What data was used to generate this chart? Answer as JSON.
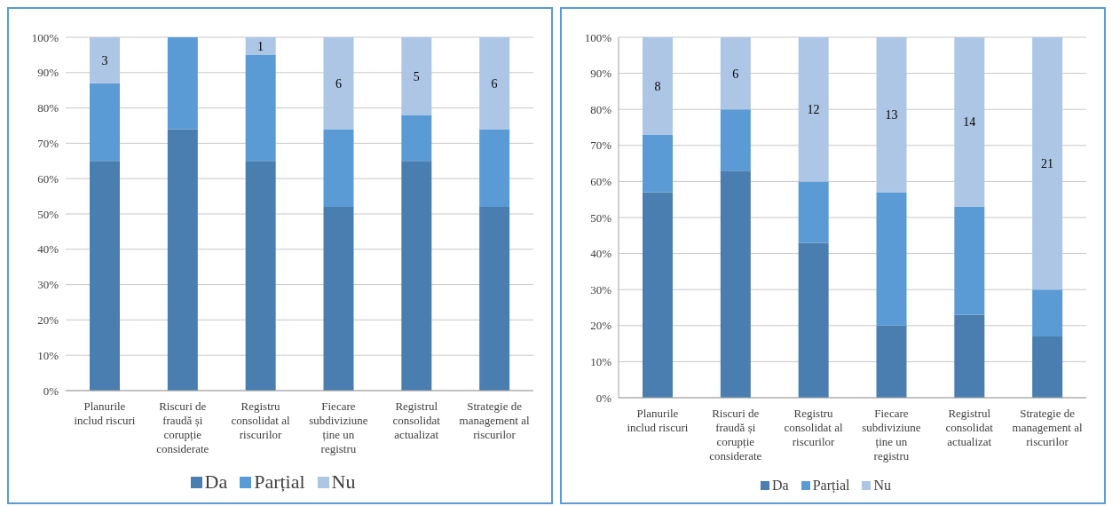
{
  "chart_data": [
    {
      "type": "bar",
      "stacked": true,
      "categories": [
        "Planurile includ riscuri",
        "Riscuri de fraudă și corupție considerate",
        "Registru consolidat al riscurilor",
        "Fiecare subdiviziune ține un registru",
        "Registrul consolidat actualizat",
        "Strategie de management al riscurilor"
      ],
      "series": [
        {
          "name": "Da",
          "color": "#4a7eb0",
          "values": [
            65,
            74,
            65,
            52,
            65,
            52
          ]
        },
        {
          "name": "Parțial",
          "color": "#5b9bd5",
          "values": [
            22,
            26,
            30,
            22,
            13,
            22
          ]
        },
        {
          "name": "Nu",
          "color": "#adc6e5",
          "values": [
            13,
            0,
            5,
            26,
            22,
            26
          ]
        }
      ],
      "annotations": [
        "3",
        "1",
        "6",
        "5",
        "6"
      ],
      "ylim": [
        0,
        100
      ],
      "yticks": [
        {
          "value": 0,
          "label": "0%"
        },
        {
          "value": 10,
          "label": "10%"
        },
        {
          "value": 20,
          "label": "20%"
        },
        {
          "value": 30,
          "label": "30%"
        },
        {
          "value": 40,
          "label": "40%"
        },
        {
          "value": 50,
          "label": "50%"
        },
        {
          "value": 60,
          "label": "60%"
        },
        {
          "value": 70,
          "label": "70%"
        },
        {
          "value": 80,
          "label": "80%"
        },
        {
          "value": 90,
          "label": "90%"
        },
        {
          "value": 100,
          "label": "100%"
        }
      ],
      "grid": "y",
      "legend": "bottom"
    },
    {
      "type": "bar",
      "stacked": true,
      "categories": [
        "Planurile includ riscuri",
        "Riscuri de fraudă și corupție considerate",
        "Registru consolidat al riscurilor",
        "Fiecare subdiviziune ține un registru",
        "Registrul consolidat actualizat",
        "Strategie de management al riscurilor"
      ],
      "series": [
        {
          "name": "Da",
          "color": "#4a7eb0",
          "values": [
            57,
            63,
            43,
            20,
            23,
            17
          ]
        },
        {
          "name": "Parțial",
          "color": "#5b9bd5",
          "values": [
            16,
            17,
            17,
            37,
            30,
            13
          ]
        },
        {
          "name": "Nu",
          "color": "#adc6e5",
          "values": [
            27,
            20,
            40,
            43,
            47,
            70
          ]
        }
      ],
      "annotations": [
        "8",
        "6",
        "12",
        "13",
        "14",
        "21"
      ],
      "ylim": [
        0,
        100
      ],
      "yticks": [
        {
          "value": 0,
          "label": "0%"
        },
        {
          "value": 10,
          "label": "10%"
        },
        {
          "value": 20,
          "label": "20%"
        },
        {
          "value": 30,
          "label": "30%"
        },
        {
          "value": 40,
          "label": "40%"
        },
        {
          "value": 50,
          "label": "50%"
        },
        {
          "value": 60,
          "label": "60%"
        },
        {
          "value": 70,
          "label": "70%"
        },
        {
          "value": 80,
          "label": "80%"
        },
        {
          "value": 90,
          "label": "90%"
        },
        {
          "value": 100,
          "label": "100%"
        }
      ],
      "grid": "y",
      "legend": "bottom"
    }
  ]
}
